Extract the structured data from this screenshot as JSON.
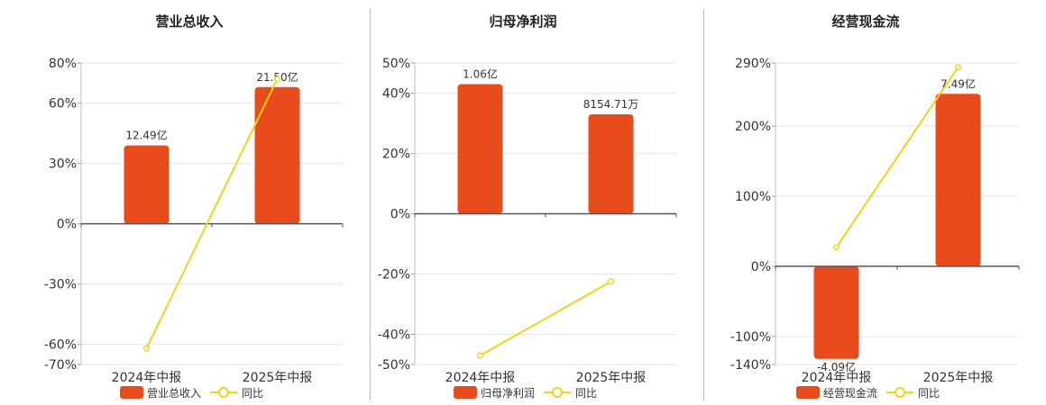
{
  "chart_data": [
    {
      "type": "bar",
      "title": "营业总收入",
      "categories": [
        "2024年中报",
        "2025年中报"
      ],
      "series": [
        {
          "name": "营业总收入",
          "type": "bar",
          "axis": "left",
          "values": [
            39,
            68
          ],
          "labels": [
            "12.49亿",
            "21.50亿"
          ],
          "color": "#e84c1c"
        },
        {
          "name": "同比",
          "type": "line",
          "axis": "left",
          "values": [
            -62,
            72
          ],
          "color": "#f2d21c"
        }
      ],
      "yaxis": {
        "ticks": [
          80,
          60,
          30,
          0,
          -30,
          -60,
          -70
        ],
        "tick_labels": [
          "80%",
          "60%",
          "30%",
          "0%",
          "-30%",
          "-60%",
          "-70%"
        ],
        "ylim": [
          -70,
          80
        ],
        "unit": "%"
      },
      "grid": true,
      "legend": "bottom"
    },
    {
      "type": "bar",
      "title": "归母净利润",
      "categories": [
        "2024年中报",
        "2025年中报"
      ],
      "series": [
        {
          "name": "归母净利润",
          "type": "bar",
          "axis": "left",
          "values": [
            43,
            33
          ],
          "labels": [
            "1.06亿",
            "8154.71万"
          ],
          "color": "#e84c1c"
        },
        {
          "name": "同比",
          "type": "line",
          "axis": "left",
          "values": [
            -47,
            -22.5
          ],
          "color": "#f2d21c"
        }
      ],
      "yaxis": {
        "ticks": [
          50,
          40,
          20,
          0,
          -20,
          -40,
          -50
        ],
        "tick_labels": [
          "50%",
          "40%",
          "20%",
          "0%",
          "-20%",
          "-40%",
          "-50%"
        ],
        "ylim": [
          -50,
          50
        ],
        "unit": "%"
      },
      "grid": true,
      "legend": "bottom"
    },
    {
      "type": "bar",
      "title": "经营现金流",
      "categories": [
        "2024年中报",
        "2025年中报"
      ],
      "series": [
        {
          "name": "经营现金流",
          "type": "bar",
          "axis": "left",
          "values": [
            -132,
            246
          ],
          "labels": [
            "-4.09亿",
            "7.49亿"
          ],
          "color": "#e84c1c"
        },
        {
          "name": "同比",
          "type": "line",
          "axis": "left",
          "values": [
            27,
            284
          ],
          "color": "#f2d21c"
        }
      ],
      "yaxis": {
        "ticks": [
          290,
          200,
          100,
          0,
          -100,
          -140
        ],
        "tick_labels": [
          "290%",
          "200%",
          "100%",
          "0%",
          "-100%",
          "-140%"
        ],
        "ylim": [
          -140,
          290
        ],
        "unit": "%"
      },
      "grid": true,
      "legend": "bottom"
    }
  ]
}
